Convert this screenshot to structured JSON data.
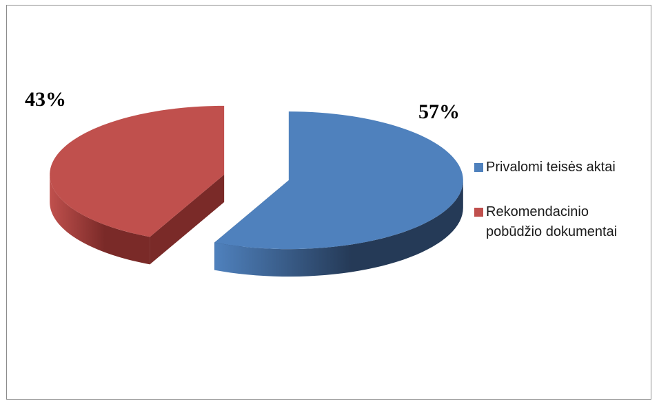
{
  "chart_data": {
    "type": "pie",
    "style": "3d-exploded",
    "title": "",
    "legend_position": "right",
    "slices": [
      {
        "label": "Privalomi teisės aktai",
        "value": 57,
        "data_label": "57%",
        "color": "#4f81bd",
        "side_color": "#253a57"
      },
      {
        "label": "Rekomendacinio pobūdžio dokumentai",
        "value": 43,
        "data_label": "43%",
        "color": "#c0504d",
        "side_color": "#7a2a28"
      }
    ]
  }
}
